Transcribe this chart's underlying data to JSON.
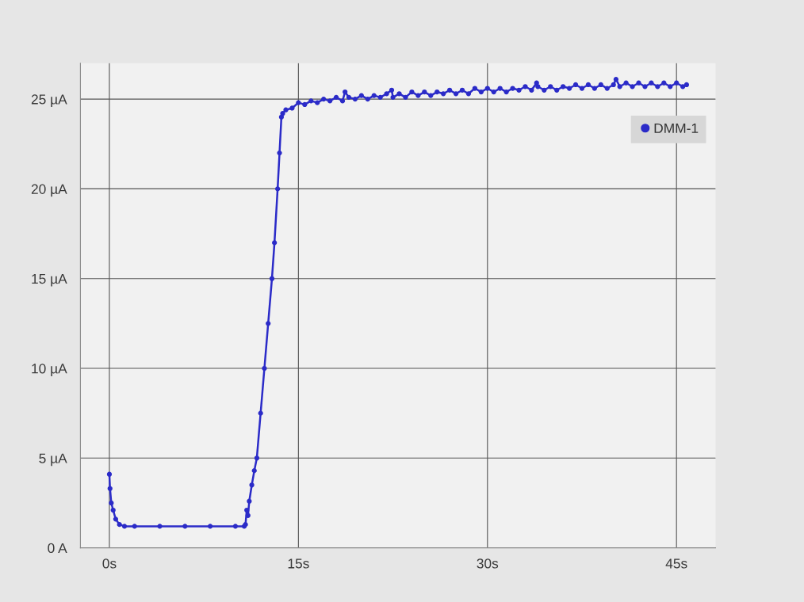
{
  "chart_data": {
    "type": "line",
    "x": [
      0,
      0.05,
      0.15,
      0.3,
      0.5,
      0.8,
      1.2,
      2,
      4,
      6,
      8,
      10,
      10.7,
      10.8,
      10.9,
      11.0,
      11.1,
      11.3,
      11.5,
      11.7,
      12.0,
      12.3,
      12.6,
      12.9,
      13.1,
      13.35,
      13.5,
      13.65,
      13.75,
      14.0,
      14.5,
      15,
      15.5,
      16,
      16.5,
      17,
      17.5,
      18,
      18.5,
      18.7,
      19,
      19.5,
      20,
      20.5,
      21,
      21.5,
      22,
      22.4,
      22.5,
      23,
      23.5,
      24,
      24.5,
      25,
      25.5,
      26,
      26.5,
      27,
      27.5,
      28,
      28.5,
      29,
      29.5,
      30,
      30.5,
      31,
      31.5,
      32,
      32.5,
      33,
      33.5,
      33.9,
      34,
      34.5,
      35,
      35.5,
      36,
      36.5,
      37,
      37.5,
      38,
      38.5,
      39,
      39.5,
      40,
      40.2,
      40.5,
      41,
      41.5,
      42,
      42.5,
      43,
      43.5,
      44,
      44.5,
      45,
      45.5,
      45.8
    ],
    "series": [
      {
        "name": "DMM-1",
        "color": "#2b2bc8",
        "values": [
          4.1,
          3.3,
          2.5,
          2.1,
          1.6,
          1.3,
          1.2,
          1.2,
          1.2,
          1.2,
          1.2,
          1.2,
          1.2,
          1.3,
          2.1,
          1.8,
          2.6,
          3.5,
          4.3,
          5.0,
          7.5,
          10.0,
          12.5,
          15.0,
          17.0,
          20.0,
          22.0,
          24.0,
          24.2,
          24.4,
          24.5,
          24.8,
          24.7,
          24.9,
          24.8,
          25.0,
          24.9,
          25.1,
          24.9,
          25.4,
          25.1,
          25.0,
          25.2,
          25.0,
          25.2,
          25.1,
          25.3,
          25.5,
          25.1,
          25.3,
          25.1,
          25.4,
          25.2,
          25.4,
          25.2,
          25.4,
          25.3,
          25.5,
          25.3,
          25.5,
          25.3,
          25.6,
          25.4,
          25.6,
          25.4,
          25.6,
          25.4,
          25.6,
          25.5,
          25.7,
          25.5,
          25.9,
          25.7,
          25.5,
          25.7,
          25.5,
          25.7,
          25.6,
          25.8,
          25.6,
          25.8,
          25.6,
          25.8,
          25.6,
          25.8,
          26.1,
          25.7,
          25.9,
          25.7,
          25.9,
          25.7,
          25.9,
          25.7,
          25.9,
          25.7,
          25.9,
          25.7,
          25.8
        ]
      }
    ],
    "xlim": [
      -2.3,
      48.1
    ],
    "ylim": [
      0,
      27
    ],
    "xticks": [
      {
        "value": 0,
        "label": "0s"
      },
      {
        "value": 15,
        "label": "15s"
      },
      {
        "value": 30,
        "label": "30s"
      },
      {
        "value": 45,
        "label": "45s"
      }
    ],
    "yticks": [
      {
        "value": 0,
        "label": "0 A"
      },
      {
        "value": 5,
        "label": "5 µA"
      },
      {
        "value": 10,
        "label": "10 µA"
      },
      {
        "value": 15,
        "label": "15 µA"
      },
      {
        "value": 20,
        "label": "20 µA"
      },
      {
        "value": 25,
        "label": "25 µA"
      }
    ],
    "grid": true,
    "legend": "top right",
    "marker": "circle",
    "line_style": "solid"
  }
}
